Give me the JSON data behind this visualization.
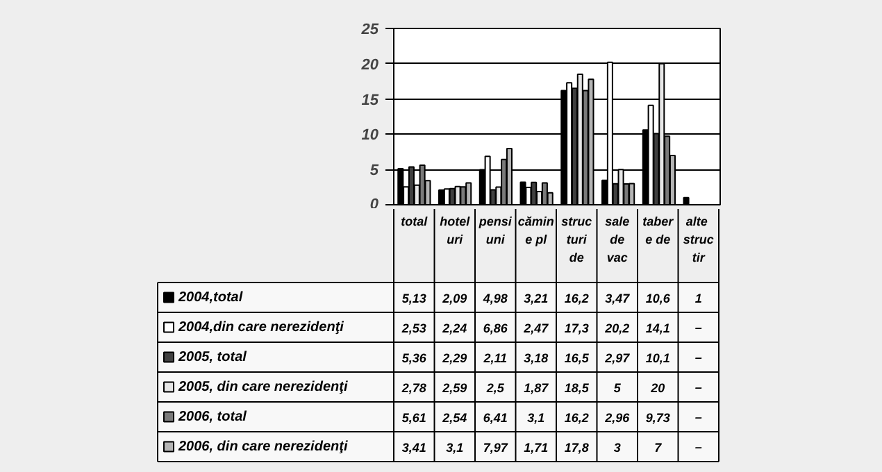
{
  "chart_data": {
    "type": "bar",
    "categories": [
      "total",
      "hoteluri",
      "pensiuni",
      "cămine pl",
      "structuri de",
      "sale de vac",
      "tabere de",
      "alte structir"
    ],
    "series": [
      {
        "name": "2004,total",
        "color": "#000000",
        "values": [
          5.13,
          2.09,
          4.98,
          3.21,
          16.2,
          3.47,
          10.6,
          1
        ],
        "value_labels": [
          "5,13",
          "2,09",
          "4,98",
          "3,21",
          "16,2",
          "3,47",
          "10,6",
          "1"
        ]
      },
      {
        "name": "2004,din care nerezidenţi",
        "color": "#ffffff",
        "values": [
          2.53,
          2.24,
          6.86,
          2.47,
          17.3,
          20.2,
          14.1,
          null
        ],
        "value_labels": [
          "2,53",
          "2,24",
          "6,86",
          "2,47",
          "17,3",
          "20,2",
          "14,1",
          "–"
        ]
      },
      {
        "name": "2005, total",
        "color": "#404040",
        "values": [
          5.36,
          2.29,
          2.11,
          3.18,
          16.5,
          2.97,
          10.1,
          null
        ],
        "value_labels": [
          "5,36",
          "2,29",
          "2,11",
          "3,18",
          "16,5",
          "2,97",
          "10,1",
          "–"
        ]
      },
      {
        "name": "2005, din care nerezidenţi",
        "color": "#e6e6e6",
        "values": [
          2.78,
          2.59,
          2.5,
          1.87,
          18.5,
          5,
          20,
          null
        ],
        "value_labels": [
          "2,78",
          "2,59",
          "2,5",
          "1,87",
          "18,5",
          "5",
          "20",
          "–"
        ]
      },
      {
        "name": "2006, total",
        "color": "#7a7a7a",
        "values": [
          5.61,
          2.54,
          6.41,
          3.1,
          16.2,
          2.96,
          9.73,
          null
        ],
        "value_labels": [
          "5,61",
          "2,54",
          "6,41",
          "3,1",
          "16,2",
          "2,96",
          "9,73",
          "–"
        ]
      },
      {
        "name": "2006, din care nerezidenţi",
        "color": "#b4b4b4",
        "values": [
          3.41,
          3.1,
          7.97,
          1.71,
          17.8,
          3,
          7,
          null
        ],
        "value_labels": [
          "3,41",
          "3,1",
          "7,97",
          "1,71",
          "17,8",
          "3",
          "7",
          "–"
        ]
      }
    ],
    "ylim": [
      0,
      25
    ],
    "yticks": [
      0,
      5,
      10,
      15,
      20,
      25
    ],
    "grid": "y",
    "legend": "bottom"
  }
}
